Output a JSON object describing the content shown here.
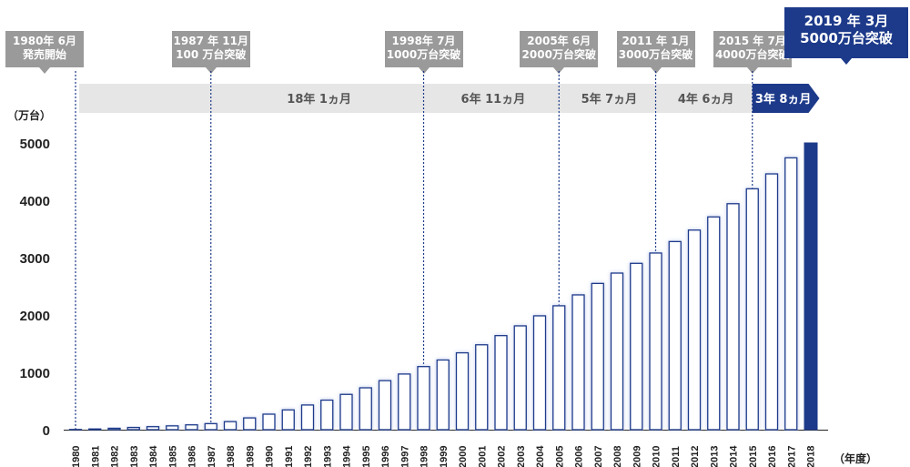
{
  "chart_data": {
    "type": "bar",
    "ylabel": "（万台）",
    "xlabel": "（年度）",
    "ylim": [
      0,
      5000
    ],
    "yticks": [
      "0",
      "1000",
      "2000",
      "3000",
      "4000",
      "5000"
    ],
    "categories": [
      "1980",
      "1981",
      "1982",
      "1983",
      "1984",
      "1985",
      "1986",
      "1987",
      "1988",
      "1989",
      "1990",
      "1991",
      "1992",
      "1993",
      "1994",
      "1995",
      "1996",
      "1997",
      "1998",
      "1999",
      "2000",
      "2001",
      "2002",
      "2003",
      "2004",
      "2005",
      "2006",
      "2007",
      "2008",
      "2009",
      "2010",
      "2011",
      "2012",
      "2013",
      "2014",
      "2015",
      "2016",
      "2017",
      "2018"
    ],
    "values": [
      3,
      12,
      24,
      38,
      52,
      66,
      84,
      105,
      140,
      205,
      270,
      345,
      430,
      515,
      615,
      730,
      855,
      970,
      1100,
      1215,
      1340,
      1480,
      1640,
      1810,
      1985,
      2160,
      2350,
      2550,
      2730,
      2900,
      3080,
      3280,
      3480,
      3710,
      3940,
      4200,
      4460,
      4740,
      5000
    ],
    "milestones": [
      {
        "line1": "1980年 6月",
        "line2": "発売開始",
        "year": "1980"
      },
      {
        "line1": "1987 年 11月",
        "line2": "100 万台突破",
        "year": "1987"
      },
      {
        "line1": "1998年 7月",
        "line2": "1000万台突破",
        "year": "1998"
      },
      {
        "line1": "2005年 6月",
        "line2": "2000万台突破",
        "year": "2005"
      },
      {
        "line1": "2011 年 1月",
        "line2": "3000万台突破",
        "year": "2010"
      },
      {
        "line1": "2015 年 7月",
        "line2": "4000万台突破",
        "year": "2015"
      },
      {
        "line1": "2019 年 3月",
        "line2": "5000万台突破",
        "year": "2018",
        "current": true
      }
    ],
    "intervals": [
      {
        "label": "18年 1ヵ月",
        "from": "1987",
        "to": "1998"
      },
      {
        "label": "6年 11ヵ月",
        "from": "1998",
        "to": "2005"
      },
      {
        "label": "5年 7ヵ月",
        "from": "2005",
        "to": "2010"
      },
      {
        "label": "4年 6ヵ月",
        "from": "2010",
        "to": "2015"
      },
      {
        "label": "3年 8ヵ月",
        "from": "2015",
        "to": "2018",
        "current": true
      }
    ],
    "colors": {
      "bar_fill": "#ffffff",
      "bar_edge": "#1d3a8a",
      "bar_glow": "#c9d2ef",
      "highlight": "#1d3a8a",
      "label_gray": "#9a9a9a",
      "arrow_gray": "#e6e6e6",
      "guide_line": "#1d3a8a"
    }
  }
}
